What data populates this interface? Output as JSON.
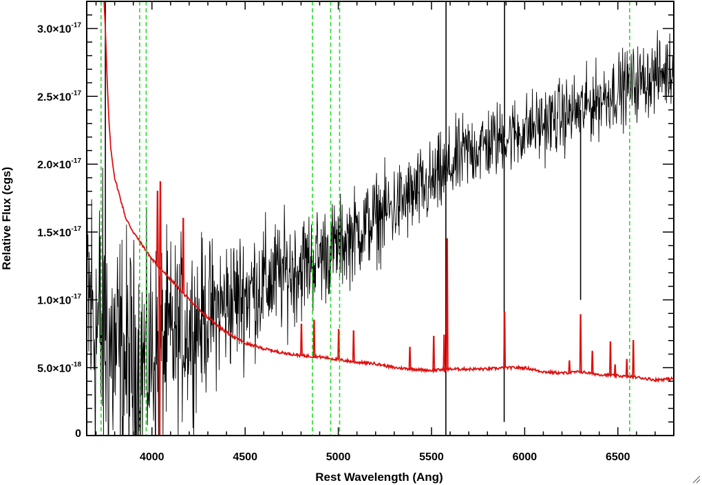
{
  "chart_data": {
    "type": "line",
    "xlabel": "Rest Wavelength (Ang)",
    "ylabel": "Relative Flux (cgs)",
    "xlim": [
      3650,
      6800
    ],
    "ylim": [
      0,
      3.2e-17
    ],
    "x_ticks": [
      {
        "value": 4000,
        "label": "4000"
      },
      {
        "value": 4500,
        "label": "4500"
      },
      {
        "value": 5000,
        "label": "5000"
      },
      {
        "value": 5500,
        "label": "5500"
      },
      {
        "value": 6000,
        "label": "6000"
      },
      {
        "value": 6500,
        "label": "6500"
      }
    ],
    "y_ticks": [
      {
        "value": 0,
        "mantissa": "0",
        "exponent": ""
      },
      {
        "value": 5e-18,
        "mantissa": "5.0×10",
        "exponent": "-18"
      },
      {
        "value": 1e-17,
        "mantissa": "1.0×10",
        "exponent": "-17"
      },
      {
        "value": 1.5e-17,
        "mantissa": "1.5×10",
        "exponent": "-17"
      },
      {
        "value": 2e-17,
        "mantissa": "2.0×10",
        "exponent": "-17"
      },
      {
        "value": 2.5e-17,
        "mantissa": "2.5×10",
        "exponent": "-17"
      },
      {
        "value": 3e-17,
        "mantissa": "3.0×10",
        "exponent": "-17"
      }
    ],
    "reference_lines_x": [
      3727,
      3934,
      3969,
      4861,
      4959,
      5007,
      6563
    ],
    "colors": {
      "observed": "#000000",
      "template": "#dd1111",
      "reference": "#22dd22",
      "axes": "#000000"
    },
    "series": [
      {
        "id": "observed",
        "style": "noisy",
        "trend_x": [
          3650,
          3700,
          3800,
          3900,
          4000,
          4200,
          4500,
          4800,
          5000,
          5200,
          5500,
          5700,
          6000,
          6300,
          6500,
          6800
        ],
        "trend_y": [
          1e-17,
          8e-18,
          6e-18,
          5e-18,
          6e-18,
          8e-18,
          1.05e-17,
          1.25e-17,
          1.4e-17,
          1.6e-17,
          1.85e-17,
          2.1e-17,
          2.25e-17,
          2.4e-17,
          2.55e-17,
          2.7e-17
        ],
        "noise_x": [
          3650,
          3800,
          4000,
          4300,
          5000,
          6000,
          6800
        ],
        "noise_y": [
          1.9e-17,
          1.5e-17,
          1.2e-17,
          8e-18,
          5e-18,
          4e-18,
          4e-18
        ],
        "spikes": [
          {
            "x": 5578,
            "y": 3.3e-17
          },
          {
            "x": 5577,
            "y": -2e-18
          },
          {
            "x": 5892,
            "y": 3.3e-17
          },
          {
            "x": 5890,
            "y": 1e-18
          },
          {
            "x": 6300,
            "y": 1e-17
          },
          {
            "x": 3750,
            "y": 3.3e-17
          }
        ]
      },
      {
        "id": "template",
        "style": "line",
        "x": [
          3740,
          3750,
          3760,
          3770,
          3780,
          3800,
          3830,
          3860,
          3900,
          3950,
          4000,
          4100,
          4200,
          4300,
          4400,
          4500,
          4600,
          4700,
          4800,
          4900,
          5000,
          5100,
          5200,
          5300,
          5400,
          5500,
          5600,
          5700,
          5800,
          5900,
          6000,
          6100,
          6200,
          6300,
          6400,
          6500,
          6600,
          6700,
          6800
        ],
        "y": [
          3.3e-17,
          3e-17,
          2.6e-17,
          2.3e-17,
          2.1e-17,
          1.9e-17,
          1.75e-17,
          1.6e-17,
          1.5e-17,
          1.4e-17,
          1.3e-17,
          1.15e-17,
          1e-17,
          8.7e-18,
          7.6e-18,
          6.8e-18,
          6.4e-18,
          6.1e-18,
          5.9e-18,
          5.8e-18,
          5.6e-18,
          5.4e-18,
          5.3e-18,
          5e-18,
          4.9e-18,
          4.8e-18,
          4.9e-18,
          4.9e-18,
          4.9e-18,
          5e-18,
          5e-18,
          4.7e-18,
          4.6e-18,
          4.7e-18,
          4.5e-18,
          4.4e-18,
          4.3e-18,
          4.1e-18,
          4.2e-18
        ],
        "lines": [
          {
            "x": 4030,
            "y": 1.8e-17
          },
          {
            "x": 4045,
            "y": 1.87e-17
          },
          {
            "x": 4041,
            "y": -2e-18
          },
          {
            "x": 4168,
            "y": 1.6e-17
          },
          {
            "x": 4802,
            "y": 8.2e-18
          },
          {
            "x": 4870,
            "y": 8.5e-18
          },
          {
            "x": 5002,
            "y": 7.8e-18
          },
          {
            "x": 5082,
            "y": 7.7e-18
          },
          {
            "x": 5384,
            "y": 6.5e-18
          },
          {
            "x": 5512,
            "y": 7.3e-18
          },
          {
            "x": 5568,
            "y": 7.4e-18
          },
          {
            "x": 5584,
            "y": 1.45e-17
          },
          {
            "x": 5892,
            "y": 9.1e-18
          },
          {
            "x": 6240,
            "y": 5.5e-18
          },
          {
            "x": 6300,
            "y": 8.9e-18
          },
          {
            "x": 6363,
            "y": 6.2e-18
          },
          {
            "x": 6460,
            "y": 6.9e-18
          },
          {
            "x": 6485,
            "y": 5.2e-18
          },
          {
            "x": 6548,
            "y": 5.6e-18
          },
          {
            "x": 6583,
            "y": 7e-18
          }
        ]
      }
    ]
  }
}
